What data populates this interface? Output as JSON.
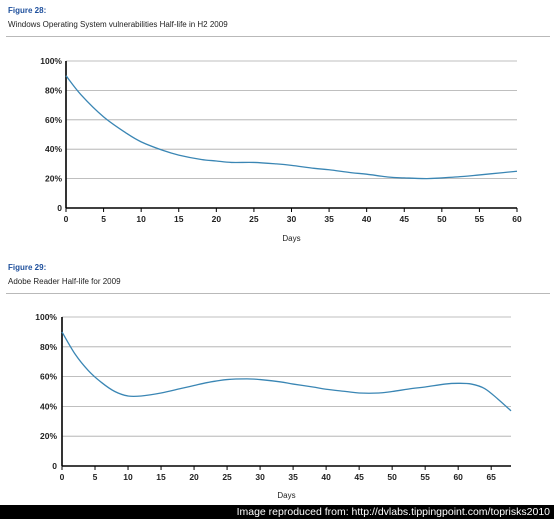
{
  "colors": {
    "line": "#3a86b4",
    "figure_label": "#1e4f9c",
    "grid": "#aaaaaa",
    "axis": "#000000"
  },
  "chart_data": [
    {
      "type": "line",
      "figure_label": "Figure 28:",
      "title": "Windows Operating System vulnerabilities Half-life in H2 2009",
      "xlabel": "Days",
      "ylabel": "",
      "xlim": [
        0,
        60
      ],
      "ylim": [
        0,
        100
      ],
      "xticks": [
        0,
        5,
        10,
        15,
        20,
        25,
        30,
        35,
        40,
        45,
        50,
        55,
        60
      ],
      "yticks": [
        "0",
        "20%",
        "40%",
        "60%",
        "80%",
        "100%"
      ],
      "grid": true,
      "series": [
        {
          "x": [
            0,
            2,
            5,
            8,
            10,
            13,
            15,
            18,
            20,
            22,
            25,
            28,
            30,
            33,
            35,
            38,
            40,
            43,
            45,
            48,
            50,
            53,
            55,
            58,
            60
          ],
          "values": [
            90,
            77,
            62,
            51,
            45,
            39,
            36,
            33,
            32,
            31,
            31,
            30,
            29,
            27,
            26,
            24,
            23,
            21,
            20.5,
            20,
            20.5,
            21.5,
            22.5,
            24,
            25
          ]
        }
      ]
    },
    {
      "type": "line",
      "figure_label": "Figure 29:",
      "title": "Adobe Reader Half-life for 2009",
      "xlabel": "Days",
      "ylabel": "",
      "xlim": [
        0,
        68
      ],
      "ylim": [
        0,
        100
      ],
      "xticks": [
        0,
        5,
        10,
        15,
        20,
        25,
        30,
        35,
        40,
        45,
        50,
        55,
        60,
        65
      ],
      "yticks": [
        "0",
        "20%",
        "40%",
        "60%",
        "80%",
        "100%"
      ],
      "grid": true,
      "series": [
        {
          "x": [
            0,
            2,
            4,
            6,
            8,
            10,
            12,
            15,
            18,
            20,
            22,
            25,
            28,
            30,
            33,
            35,
            38,
            40,
            43,
            45,
            48,
            50,
            53,
            55,
            58,
            60,
            62,
            64,
            66,
            68
          ],
          "values": [
            90,
            75,
            64,
            56,
            50,
            47,
            47,
            49,
            52,
            54,
            56,
            58,
            58.5,
            58,
            56.5,
            55,
            53,
            51.5,
            50,
            49,
            49,
            50,
            52,
            53,
            55,
            55.5,
            55,
            52,
            45,
            37
          ]
        }
      ]
    }
  ],
  "footer": "Image reproduced from:  http://dvlabs.tippingpoint.com/toprisks2010"
}
